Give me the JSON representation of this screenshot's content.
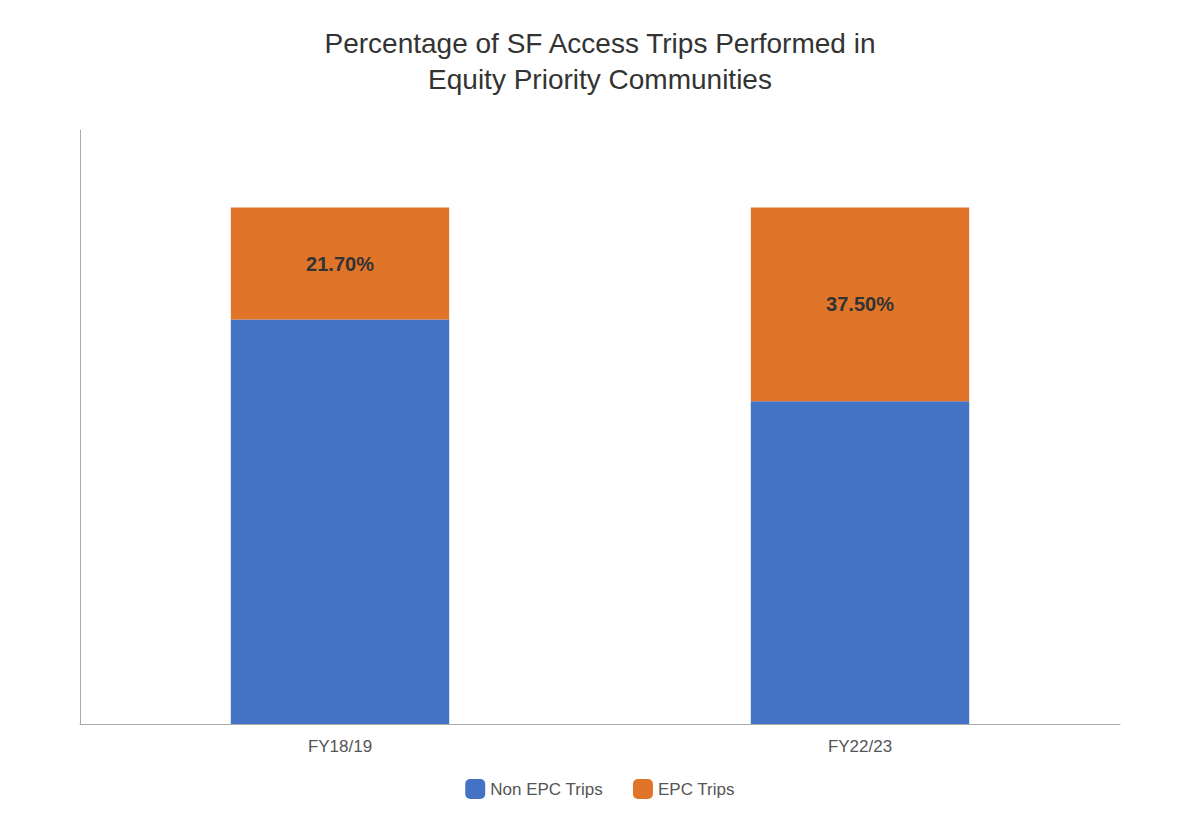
{
  "chart_data": {
    "type": "bar",
    "title": "Percentage of SF Access Trips Performed in\nEquity Priority Communities",
    "categories": [
      "FY18/19",
      "FY22/23"
    ],
    "series": [
      {
        "name": "Non EPC Trips",
        "color": "#4472C4",
        "values": [
          78.3,
          62.5
        ]
      },
      {
        "name": "EPC Trips",
        "color": "#E07428",
        "values": [
          21.7,
          37.5
        ],
        "value_labels": [
          "21.70%",
          "37.50%"
        ],
        "data_labels": true
      }
    ],
    "stacked": true,
    "ylim": [
      0,
      115
    ],
    "tick_labels": "x",
    "grid": false,
    "legend": "bottom"
  }
}
